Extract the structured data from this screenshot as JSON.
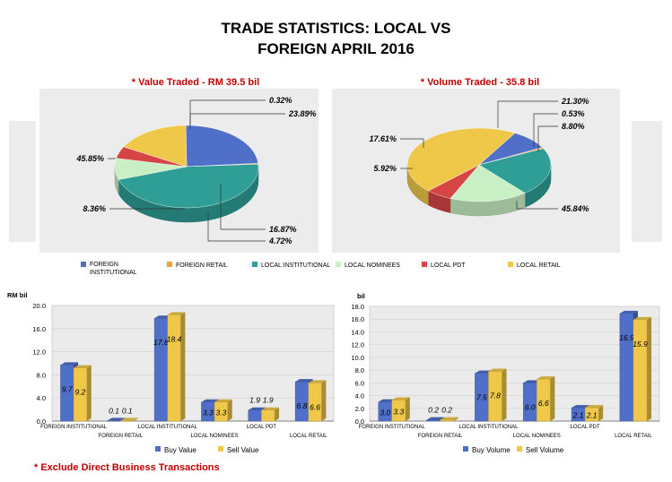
{
  "header": {
    "title_line1": "TRADE STATISTICS: LOCAL VS",
    "title_line2": "FOREIGN APRIL 2016"
  },
  "footnote": "* Exclude Direct Business Transactions",
  "colors": {
    "foreign_institutional": "#4f6fc9",
    "foreign_retail": "#e8a33a",
    "local_institutional": "#2e9e96",
    "local_nominees": "#c9f0c4",
    "local_pdt": "#d64545",
    "local_retail": "#efc84a",
    "title_red": "#c00000",
    "panel_bg": "#ececec"
  },
  "chart_data": [
    {
      "type": "pie",
      "title": "* Value Traded - RM 39.5 bil",
      "labels": [
        "FOREIGN INSTITUTIONAL",
        "FOREIGN RETAIL",
        "LOCAL INSTITUTIONAL",
        "LOCAL NOMINEES",
        "LOCAL PDT",
        "LOCAL RETAIL"
      ],
      "values": [
        23.89,
        0.32,
        45.85,
        8.36,
        4.72,
        16.87
      ],
      "value_labels": [
        "23.89%",
        "0.32%",
        "45.85%",
        "8.36%",
        "4.72%",
        "16.87%"
      ]
    },
    {
      "type": "pie",
      "title": "* Volume Traded -  35.8 bil",
      "labels": [
        "FOREIGN INSTITUTIONAL",
        "FOREIGN RETAIL",
        "LOCAL INSTITUTIONAL",
        "LOCAL NOMINEES",
        "LOCAL PDT",
        "LOCAL RETAIL"
      ],
      "values": [
        8.8,
        0.53,
        21.3,
        17.61,
        5.92,
        45.84
      ],
      "value_labels": [
        "8.80%",
        "0.53%",
        "21.30%",
        "17.61%",
        "5.92%",
        "45.84%"
      ]
    },
    {
      "type": "bar",
      "ylabel": "RM bil",
      "categories": [
        "FOREIGN INSTITUTIONAL",
        "FOREIGN RETAIL",
        "LOCAL INSTITUTIONAL",
        "LOCAL NOMINEES",
        "LOCAL PDT",
        "LOCAL RETAIL"
      ],
      "series": [
        {
          "name": "Buy Value",
          "values": [
            9.7,
            0.1,
            17.8,
            3.3,
            1.9,
            6.8
          ],
          "value_labels": [
            "9.7",
            "0.1",
            "17.8",
            "3.3",
            "1.9",
            "6.8"
          ]
        },
        {
          "name": "Sell Value",
          "values": [
            9.2,
            0.1,
            18.4,
            3.3,
            1.9,
            6.6
          ],
          "value_labels": [
            "9.2",
            "0.1",
            "18.4",
            "3.3",
            "1.9",
            "6.6"
          ]
        }
      ],
      "ylim": [
        0,
        20
      ],
      "yticks": [
        "0.0",
        "4.0",
        "8.0",
        "12.0",
        "16.0",
        "20.0"
      ],
      "grid": true,
      "legend": "bottom"
    },
    {
      "type": "bar",
      "ylabel": "bil",
      "categories": [
        "FOREIGN INSTITUTIONAL",
        "FOREIGN RETAIL",
        "LOCAL INSTITUTIONAL",
        "LOCAL NOMINEES",
        "LOCAL PDT",
        "LOCAL RETAIL"
      ],
      "series": [
        {
          "name": "Buy Volume",
          "values": [
            3.0,
            0.2,
            7.5,
            6.0,
            2.1,
            16.9
          ],
          "value_labels": [
            "3.0",
            "0.2",
            "7.5",
            "6.0",
            "2.1",
            "16.9"
          ]
        },
        {
          "name": "Sell Volume",
          "values": [
            3.3,
            0.2,
            7.8,
            6.6,
            2.1,
            15.9
          ],
          "value_labels": [
            "3.3",
            "0.2",
            "7.8",
            "6.6",
            "2.1",
            "15.9"
          ]
        }
      ],
      "ylim": [
        0,
        18
      ],
      "yticks": [
        "0.0",
        "2.0",
        "4.0",
        "6.0",
        "8.0",
        "10.0",
        "12.0",
        "14.0",
        "16.0",
        "18.0"
      ],
      "grid": true,
      "legend": "bottom"
    }
  ]
}
